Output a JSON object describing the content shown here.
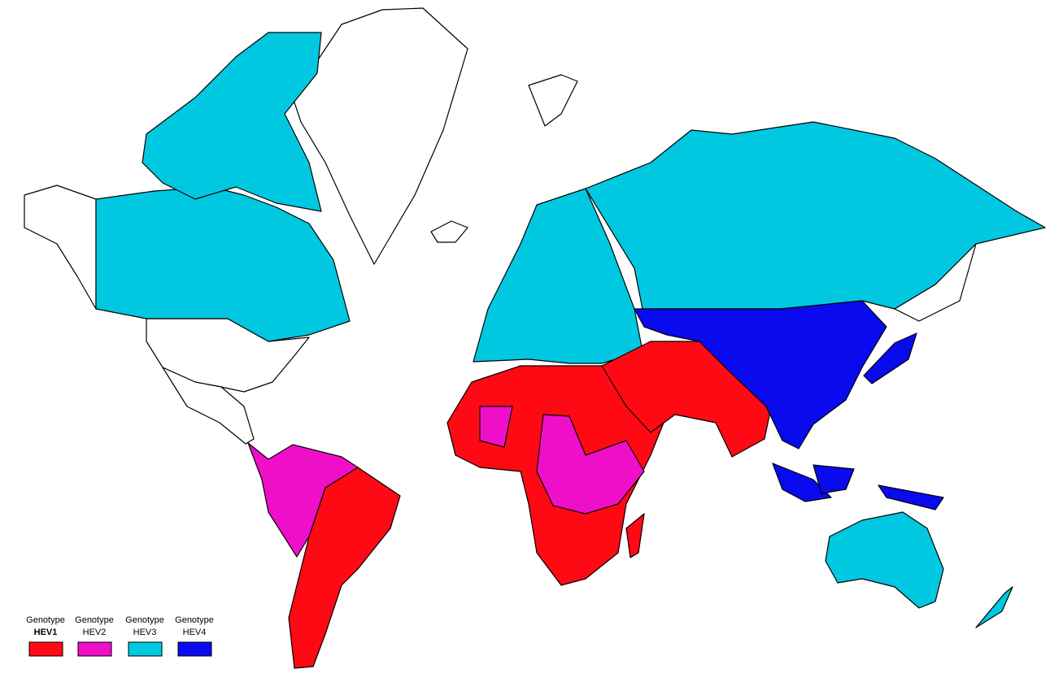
{
  "legend": {
    "items": [
      {
        "line1": "Genotype",
        "line2": "HEV1",
        "color": "#ff0a14"
      },
      {
        "line1": "Genotype",
        "line2": "HEV2",
        "color": "#f00fc8"
      },
      {
        "line1": "Genotype",
        "line2": "HEV3",
        "color": "#00c8e1"
      },
      {
        "line1": "Genotype",
        "line2": "HEV4",
        "color": "#0a0aef"
      }
    ]
  }
}
